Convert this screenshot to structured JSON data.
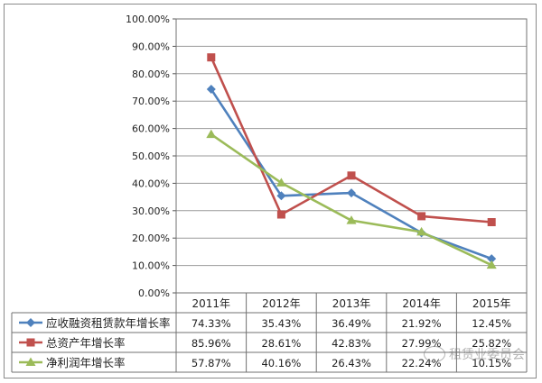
{
  "chart_data": {
    "type": "line",
    "categories": [
      "2011年",
      "2012年",
      "2013年",
      "2014年",
      "2015年"
    ],
    "ylim": [
      0,
      100
    ],
    "yticks": [
      "0.00%",
      "10.00%",
      "20.00%",
      "30.00%",
      "40.00%",
      "50.00%",
      "60.00%",
      "70.00%",
      "80.00%",
      "90.00%",
      "100.00%"
    ],
    "grid": true,
    "legend": "data-table",
    "series": [
      {
        "name": "应收融资租赁款年增长率",
        "values": [
          74.33,
          35.43,
          36.49,
          21.92,
          12.45
        ],
        "labels": [
          "74.33%",
          "35.43%",
          "36.49%",
          "21.92%",
          "12.45%"
        ],
        "color": "#4f81bd",
        "marker": "diamond"
      },
      {
        "name": "总资产年增长率",
        "values": [
          85.96,
          28.61,
          42.83,
          27.99,
          25.82
        ],
        "labels": [
          "85.96%",
          "28.61%",
          "42.83%",
          "27.99%",
          "25.82%"
        ],
        "color": "#c0504d",
        "marker": "square"
      },
      {
        "name": "净利润年增长率",
        "values": [
          57.87,
          40.16,
          26.43,
          22.24,
          10.15
        ],
        "labels": [
          "57.87%",
          "40.16%",
          "26.43%",
          "22.24%",
          "10.15%"
        ],
        "color": "#9bbb59",
        "marker": "triangle"
      }
    ]
  },
  "watermark": "租赁业委员会"
}
